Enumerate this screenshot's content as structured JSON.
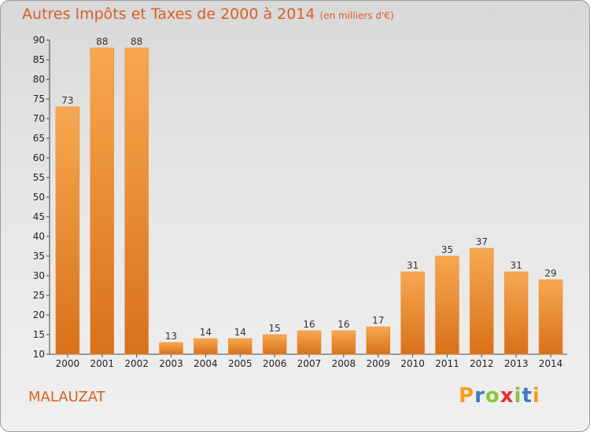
{
  "header": {
    "title": "Autres Impôts et Taxes de 2000 à 2014",
    "subtitle": "(en milliers d'€)"
  },
  "footer": {
    "place": "MALAUZAT",
    "brand": {
      "letters": [
        "P",
        "r",
        "o",
        "x",
        "i",
        "t",
        "i"
      ],
      "colors": [
        "#f2a218",
        "#3f78c5",
        "#8cc43e",
        "#e2322d",
        "#8cc43e",
        "#3f78c5",
        "#f2a218"
      ]
    }
  },
  "colors": {
    "bar": "#f08a2e",
    "bar_light": "#f7a850",
    "bar_dark": "#d8711a",
    "title": "#d95f24"
  },
  "chart_data": {
    "type": "bar",
    "title": "Autres Impôts et Taxes de 2000 à 2014",
    "subtitle": "(en milliers d'€)",
    "categories": [
      "2000",
      "2001",
      "2002",
      "2003",
      "2004",
      "2005",
      "2006",
      "2007",
      "2008",
      "2009",
      "2010",
      "2011",
      "2012",
      "2013",
      "2014"
    ],
    "values": [
      73,
      88,
      88,
      13,
      14,
      14,
      15,
      16,
      16,
      17,
      31,
      35,
      37,
      31,
      29
    ],
    "ylim": [
      10,
      90
    ],
    "yticks": [
      10,
      15,
      20,
      25,
      30,
      35,
      40,
      45,
      50,
      55,
      60,
      65,
      70,
      75,
      80,
      85,
      90
    ],
    "grid": false,
    "data_labels": true
  }
}
